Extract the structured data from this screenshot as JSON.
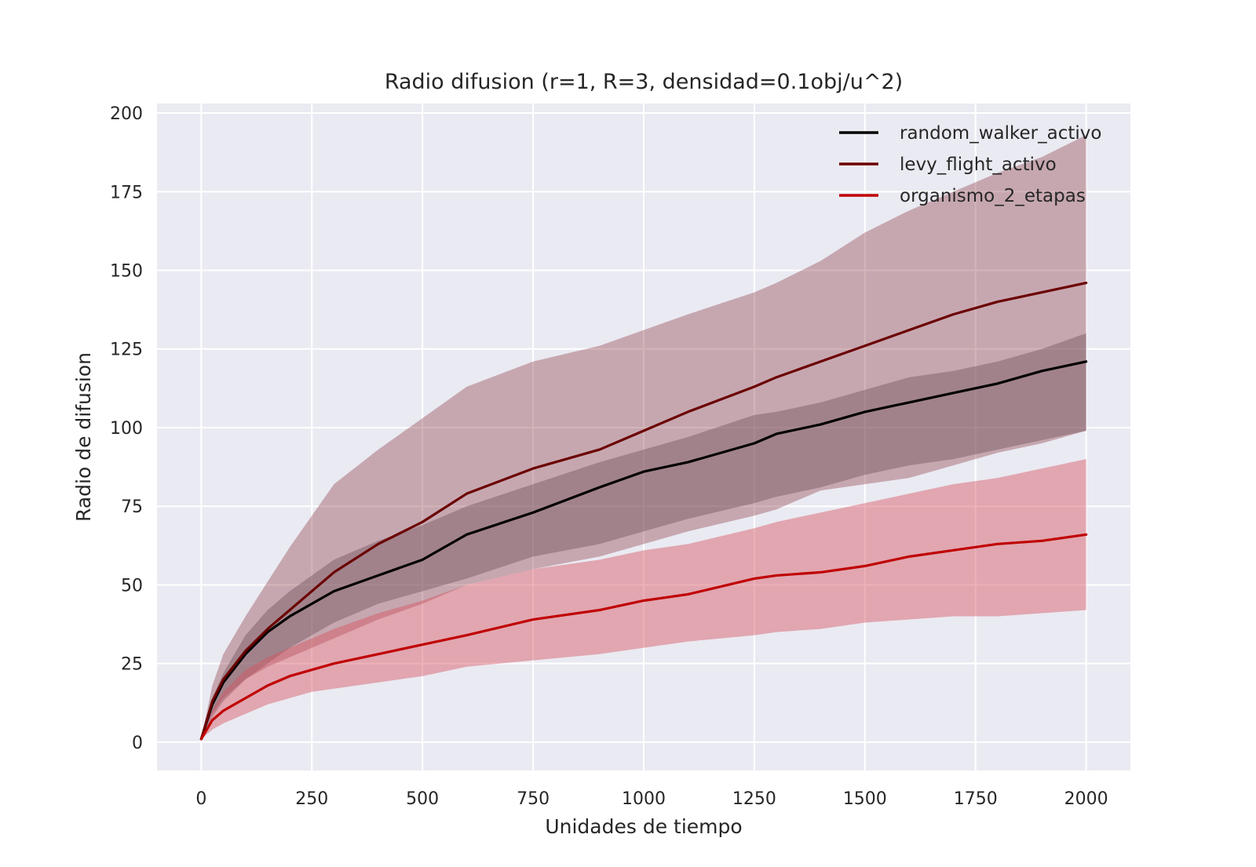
{
  "chart_data": {
    "type": "line",
    "title": "Radio difusion (r=1, R=3, densidad=0.1obj/u^2)",
    "xlabel": "Unidades de tiempo",
    "ylabel": "Radio de difusion",
    "xlim": [
      -100,
      2100
    ],
    "ylim": [
      -9,
      203
    ],
    "xticks": [
      0,
      250,
      500,
      750,
      1000,
      1250,
      1500,
      1750,
      2000
    ],
    "yticks": [
      0,
      25,
      50,
      75,
      100,
      125,
      150,
      175,
      200
    ],
    "grid": true,
    "legend_position": "upper-right",
    "x": [
      0,
      25,
      50,
      100,
      150,
      200,
      250,
      300,
      400,
      500,
      600,
      750,
      900,
      1000,
      1100,
      1250,
      1300,
      1400,
      1500,
      1600,
      1700,
      1800,
      1900,
      2000
    ],
    "series": [
      {
        "name": "random_walker_activo",
        "color": "#000000",
        "band_color": "#5a5a66",
        "band_opacity": 0.42,
        "values": [
          1,
          12,
          19,
          28,
          35,
          40,
          44,
          48,
          53,
          58,
          66,
          73,
          81,
          86,
          89,
          95,
          98,
          101,
          105,
          108,
          111,
          114,
          118,
          121
        ],
        "upper": [
          1,
          14,
          22,
          34,
          42,
          48,
          53,
          58,
          64,
          69,
          75,
          82,
          89,
          93,
          97,
          104,
          105,
          108,
          112,
          116,
          118,
          121,
          125,
          130
        ],
        "lower": [
          1,
          8,
          13,
          20,
          25,
          30,
          34,
          38,
          44,
          48,
          52,
          59,
          63,
          67,
          71,
          76,
          78,
          81,
          85,
          88,
          90,
          93,
          96,
          99
        ]
      },
      {
        "name": "levy_flight_activo",
        "color": "#6b0000",
        "band_color": "#8b3a44",
        "band_opacity": 0.38,
        "values": [
          1,
          13,
          20,
          29,
          36,
          42,
          48,
          54,
          63,
          70,
          79,
          87,
          93,
          99,
          105,
          113,
          116,
          121,
          126,
          131,
          136,
          140,
          143,
          146
        ],
        "upper": [
          1,
          18,
          28,
          40,
          51,
          62,
          72,
          82,
          93,
          103,
          113,
          121,
          126,
          131,
          136,
          143,
          146,
          153,
          162,
          169,
          175,
          181,
          186,
          193
        ],
        "lower": [
          1,
          9,
          14,
          20,
          24,
          27,
          30,
          33,
          39,
          44,
          50,
          55,
          59,
          63,
          67,
          72,
          74,
          80,
          82,
          84,
          88,
          92,
          95,
          99
        ]
      },
      {
        "name": "organismo_2_etapas",
        "color": "#c00000",
        "band_color": "#d6545f",
        "band_opacity": 0.45,
        "values": [
          1,
          7,
          10,
          14,
          18,
          21,
          23,
          25,
          28,
          31,
          34,
          39,
          42,
          45,
          47,
          52,
          53,
          54,
          56,
          59,
          61,
          63,
          64,
          66
        ],
        "upper": [
          1,
          10,
          16,
          23,
          27,
          30,
          33,
          36,
          41,
          45,
          50,
          55,
          58,
          61,
          63,
          68,
          70,
          73,
          76,
          79,
          82,
          84,
          87,
          90
        ],
        "lower": [
          1,
          4,
          6,
          9,
          12,
          14,
          16,
          17,
          19,
          21,
          24,
          26,
          28,
          30,
          32,
          34,
          35,
          36,
          38,
          39,
          40,
          40,
          41,
          42
        ]
      }
    ]
  }
}
